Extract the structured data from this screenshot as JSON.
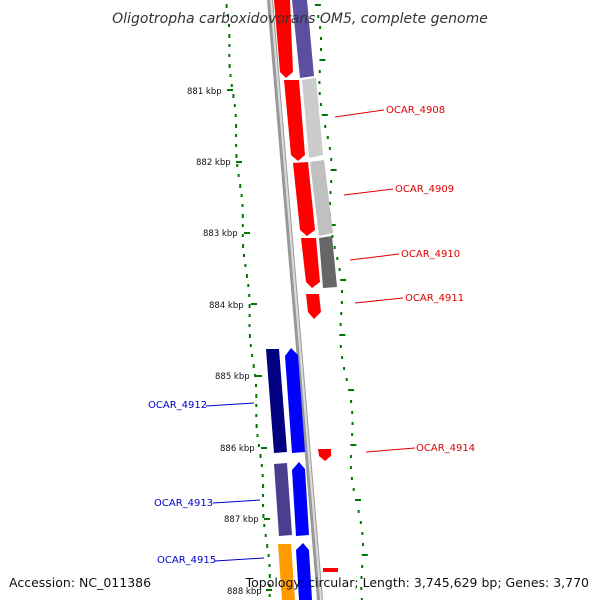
{
  "title": "Oligotropha carboxidovorans OM5, complete genome",
  "accession": "Accession: NC_011386",
  "topology": "Topology: circular; Length: 3,745,629 bp; Genes: 3,770",
  "colors": {
    "forward_strand": "#ff0000",
    "reverse_strand": "#0000ff",
    "gc_track": "#007700",
    "backbone": "#888888",
    "label_red": "#dd0000",
    "label_blue": "#0000cc"
  },
  "ticks": [
    "881 kbp",
    "882 kbp",
    "883 kbp",
    "884 kbp",
    "885 kbp",
    "886 kbp",
    "887 kbp",
    "888 kbp"
  ],
  "labels": [
    {
      "text": "OCAR_4908",
      "color": "red"
    },
    {
      "text": "OCAR_4909",
      "color": "red"
    },
    {
      "text": "OCAR_4910",
      "color": "red"
    },
    {
      "text": "OCAR_4911",
      "color": "red"
    },
    {
      "text": "OCAR_4912",
      "color": "blue"
    },
    {
      "text": "OCAR_4914",
      "color": "red"
    },
    {
      "text": "OCAR_4913",
      "color": "blue"
    },
    {
      "text": "OCAR_4915",
      "color": "blue"
    }
  ]
}
